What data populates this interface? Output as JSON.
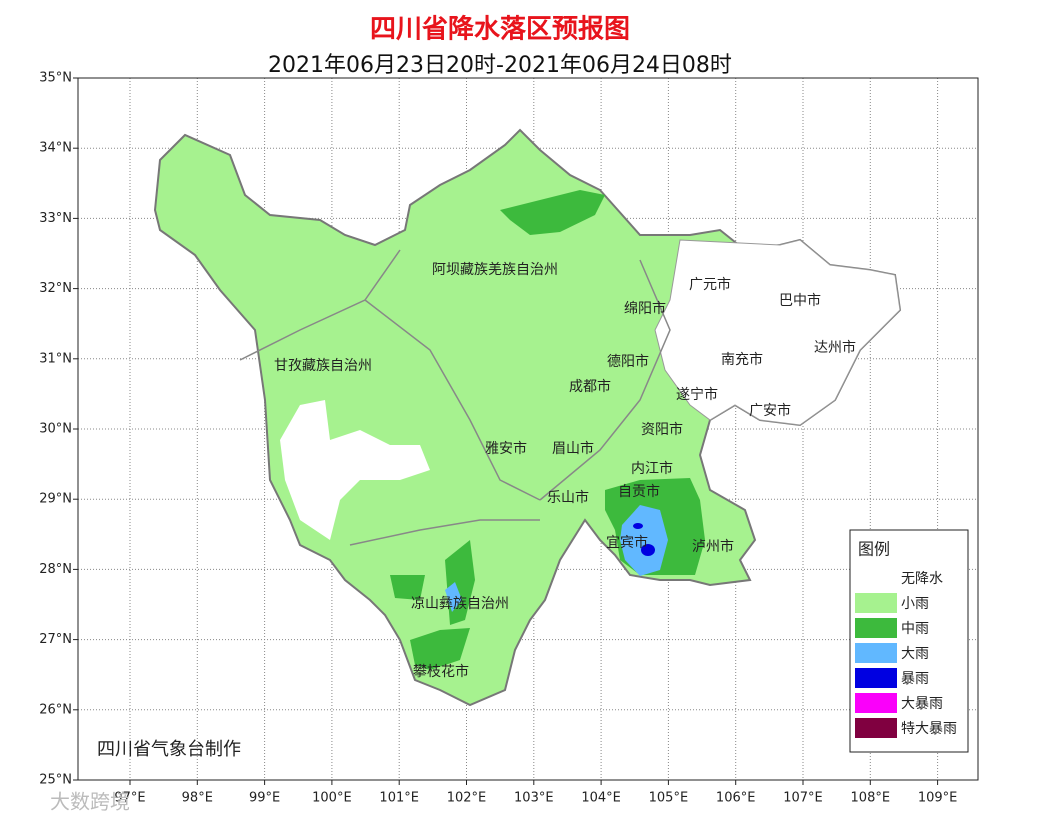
{
  "header": {
    "title": "四川省降水落区预报图",
    "subtitle": "2021年06月23日20时-2021年06月24日08时"
  },
  "axes": {
    "lat_labels": [
      "35°N",
      "34°N",
      "33°N",
      "32°N",
      "31°N",
      "30°N",
      "29°N",
      "28°N",
      "27°N",
      "26°N",
      "25°N"
    ],
    "lon_labels": [
      "97°E",
      "98°E",
      "99°E",
      "100°E",
      "101°E",
      "102°E",
      "103°E",
      "104°E",
      "105°E",
      "106°E",
      "107°E",
      "108°E",
      "109°E"
    ]
  },
  "regions": [
    "阿坝藏族羌族自治州",
    "甘孜藏族自治州",
    "广元市",
    "巴中市",
    "绵阳市",
    "南充市",
    "达州市",
    "德阳市",
    "成都市",
    "遂宁市",
    "广安市",
    "资阳市",
    "雅安市",
    "眉山市",
    "内江市",
    "自贡市",
    "乐山市",
    "宜宾市",
    "泸州市",
    "凉山彝族自治州",
    "攀枝花市"
  ],
  "legend": {
    "title": "图例",
    "items": [
      {
        "label": "无降水",
        "color": "#ffffff"
      },
      {
        "label": "小雨",
        "color": "#a6f28f"
      },
      {
        "label": "中雨",
        "color": "#3dba3d"
      },
      {
        "label": "大雨",
        "color": "#61b8ff"
      },
      {
        "label": "暴雨",
        "color": "#0000e1"
      },
      {
        "label": "大暴雨",
        "color": "#fa00fa"
      },
      {
        "label": "特大暴雨",
        "color": "#800040"
      }
    ]
  },
  "credit": "四川省气象台制作",
  "watermark": "大数跨境"
}
